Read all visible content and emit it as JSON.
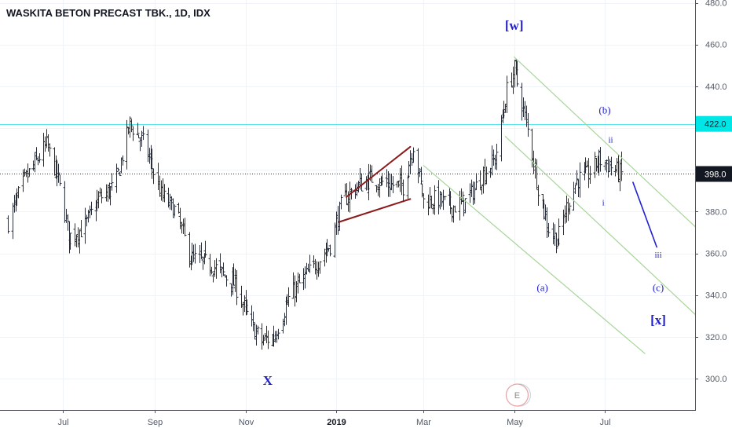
{
  "chart_data": {
    "type": "ohlc",
    "title": "WASKITA BETON PRECAST TBK., 1D, IDX",
    "y_axis": {
      "ticks": [
        300,
        320,
        340,
        360,
        380,
        400,
        420,
        440,
        460,
        480
      ],
      "ylim": [
        284,
        484
      ],
      "position": "right"
    },
    "x_axis": {
      "ticks": [
        "Jul",
        "Sep",
        "Nov",
        "2019",
        "Mar",
        "May",
        "Jul"
      ],
      "bold_ticks": [
        "2019"
      ]
    },
    "price_labels": [
      {
        "value": 422.0,
        "text": "422.0",
        "color": "#00e5e5"
      },
      {
        "value": 398.0,
        "text": "398.0",
        "color": "#131722"
      }
    ],
    "horizontal_lines": [
      {
        "value": 422.0,
        "style": "solid",
        "color": "#5ee6ee"
      },
      {
        "value": 398.0,
        "style": "dotted",
        "color": "#333333"
      }
    ],
    "close_path_points": [
      {
        "t": "2018-05-25",
        "close": 375
      },
      {
        "t": "2018-06-05",
        "close": 395
      },
      {
        "t": "2018-06-20",
        "close": 412
      },
      {
        "t": "2018-06-28",
        "close": 395
      },
      {
        "t": "2018-07-05",
        "close": 368
      },
      {
        "t": "2018-07-15",
        "close": 372
      },
      {
        "t": "2018-07-25",
        "close": 386
      },
      {
        "t": "2018-08-05",
        "close": 392
      },
      {
        "t": "2018-08-15",
        "close": 422
      },
      {
        "t": "2018-08-25",
        "close": 412
      },
      {
        "t": "2018-09-05",
        "close": 388
      },
      {
        "t": "2018-09-15",
        "close": 380
      },
      {
        "t": "2018-09-25",
        "close": 358
      },
      {
        "t": "2018-10-10",
        "close": 354
      },
      {
        "t": "2018-10-25",
        "close": 345
      },
      {
        "t": "2018-11-05",
        "close": 325
      },
      {
        "t": "2018-11-12",
        "close": 318
      },
      {
        "t": "2018-11-20",
        "close": 320
      },
      {
        "t": "2018-12-01",
        "close": 340
      },
      {
        "t": "2018-12-15",
        "close": 352
      },
      {
        "t": "2018-12-28",
        "close": 364
      },
      {
        "t": "2019-01-05",
        "close": 385
      },
      {
        "t": "2019-01-15",
        "close": 392
      },
      {
        "t": "2019-01-25",
        "close": 396
      },
      {
        "t": "2019-02-05",
        "close": 393
      },
      {
        "t": "2019-02-15",
        "close": 392
      },
      {
        "t": "2019-02-22",
        "close": 412
      },
      {
        "t": "2019-03-01",
        "close": 385
      },
      {
        "t": "2019-03-10",
        "close": 386
      },
      {
        "t": "2019-03-20",
        "close": 382
      },
      {
        "t": "2019-03-30",
        "close": 385
      },
      {
        "t": "2019-04-10",
        "close": 398
      },
      {
        "t": "2019-04-18",
        "close": 405
      },
      {
        "t": "2019-04-26",
        "close": 438
      },
      {
        "t": "2019-05-01",
        "close": 448
      },
      {
        "t": "2019-05-06",
        "close": 432
      },
      {
        "t": "2019-05-12",
        "close": 412
      },
      {
        "t": "2019-05-18",
        "close": 388
      },
      {
        "t": "2019-05-24",
        "close": 372
      },
      {
        "t": "2019-05-30",
        "close": 366
      },
      {
        "t": "2019-06-05",
        "close": 382
      },
      {
        "t": "2019-06-12",
        "close": 395
      },
      {
        "t": "2019-06-20",
        "close": 398
      },
      {
        "t": "2019-06-27",
        "close": 405
      },
      {
        "t": "2019-07-04",
        "close": 402
      },
      {
        "t": "2019-07-12",
        "close": 398
      }
    ],
    "annotations": [
      {
        "text": "[w]",
        "t": "2019-05-01",
        "price": 467,
        "size": 17,
        "weight": "bold"
      },
      {
        "text": "(b)",
        "t": "2019-07-01",
        "price": 427,
        "size": 13
      },
      {
        "text": "ii",
        "t": "2019-07-05",
        "price": 413,
        "size": 11
      },
      {
        "text": "i",
        "t": "2019-06-30",
        "price": 383,
        "size": 11
      },
      {
        "text": "iii",
        "t": "2019-08-06",
        "price": 358,
        "size": 11
      },
      {
        "text": "(a)",
        "t": "2019-05-20",
        "price": 342,
        "size": 13
      },
      {
        "text": "(c)",
        "t": "2019-08-06",
        "price": 342,
        "size": 13
      },
      {
        "text": "[x]",
        "t": "2019-08-06",
        "price": 326,
        "size": 17,
        "weight": "bold"
      },
      {
        "text": "X",
        "t": "2018-11-16",
        "price": 297,
        "size": 17,
        "weight": "bold"
      }
    ],
    "drawings": [
      {
        "kind": "trendline",
        "color": "#8b1a1a",
        "from": {
          "t": "2019-01-08",
          "price": 387
        },
        "to": {
          "t": "2019-02-20",
          "price": 411
        }
      },
      {
        "kind": "trendline",
        "color": "#8b1a1a",
        "from": {
          "t": "2019-01-03",
          "price": 375
        },
        "to": {
          "t": "2019-02-20",
          "price": 386
        }
      },
      {
        "kind": "channel_line",
        "color": "#a8d59a",
        "from": {
          "t": "2019-05-01",
          "price": 454
        },
        "to": {
          "t": "2019-09-01",
          "price": 372
        }
      },
      {
        "kind": "channel_line",
        "color": "#a8d59a",
        "from": {
          "t": "2019-04-25",
          "price": 416
        },
        "to": {
          "t": "2019-09-01",
          "price": 330
        }
      },
      {
        "kind": "channel_line",
        "color": "#a8d59a",
        "from": {
          "t": "2019-03-01",
          "price": 402
        },
        "to": {
          "t": "2019-07-28",
          "price": 312
        }
      },
      {
        "kind": "projection_line",
        "color": "#2020d0",
        "from": {
          "t": "2019-07-20",
          "price": 394
        },
        "to": {
          "t": "2019-08-05",
          "price": 363
        }
      }
    ],
    "event_marker": {
      "label": "E",
      "t": "2019-05-03"
    }
  }
}
